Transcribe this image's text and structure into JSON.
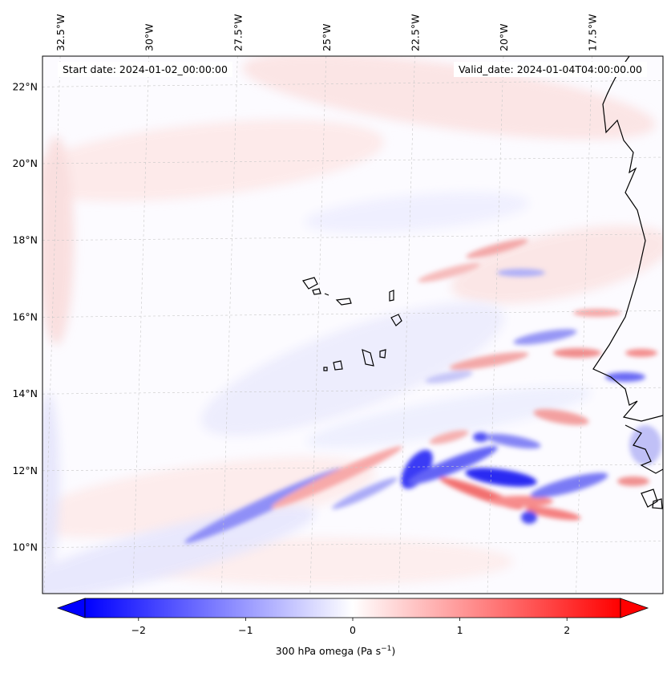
{
  "map": {
    "start_date_text": "Start date: 2024-01-02_00:00:00",
    "valid_date_text": "Valid_date: 2024-01-04T04:00:00.00",
    "field": "300 hPa omega",
    "lon_range_deg": [
      -33.0,
      -15.5
    ],
    "lat_range_deg": [
      8.8,
      22.8
    ],
    "lon_labels": [
      {
        "deg": -32.5,
        "text": "32.5°W"
      },
      {
        "deg": -30.0,
        "text": "30°W"
      },
      {
        "deg": -27.5,
        "text": "27.5°W"
      },
      {
        "deg": -25.0,
        "text": "25°W"
      },
      {
        "deg": -22.5,
        "text": "22.5°W"
      },
      {
        "deg": -20.0,
        "text": "20°W"
      },
      {
        "deg": -17.5,
        "text": "17.5°W"
      }
    ],
    "lat_labels": [
      {
        "deg": 22,
        "text": "22°N"
      },
      {
        "deg": 20,
        "text": "20°N"
      },
      {
        "deg": 18,
        "text": "18°N"
      },
      {
        "deg": 16,
        "text": "16°N"
      },
      {
        "deg": 14,
        "text": "14°N"
      },
      {
        "deg": 12,
        "text": "12°N"
      },
      {
        "deg": 10,
        "text": "10°N"
      }
    ]
  },
  "colorbar": {
    "label": "300 hPa omega (Pa s",
    "label_sup": "−1",
    "label_close": ")",
    "range": [
      -2.5,
      2.5
    ],
    "colormap": "bwr",
    "negative_color": "#0000ff",
    "zero_color": "#ffffff",
    "positive_color": "#ff0000",
    "ticks": [
      {
        "value": -2,
        "text": "−2"
      },
      {
        "value": -1,
        "text": "−1"
      },
      {
        "value": 0,
        "text": "0"
      },
      {
        "value": 1,
        "text": "1"
      },
      {
        "value": 2,
        "text": "2"
      }
    ]
  }
}
